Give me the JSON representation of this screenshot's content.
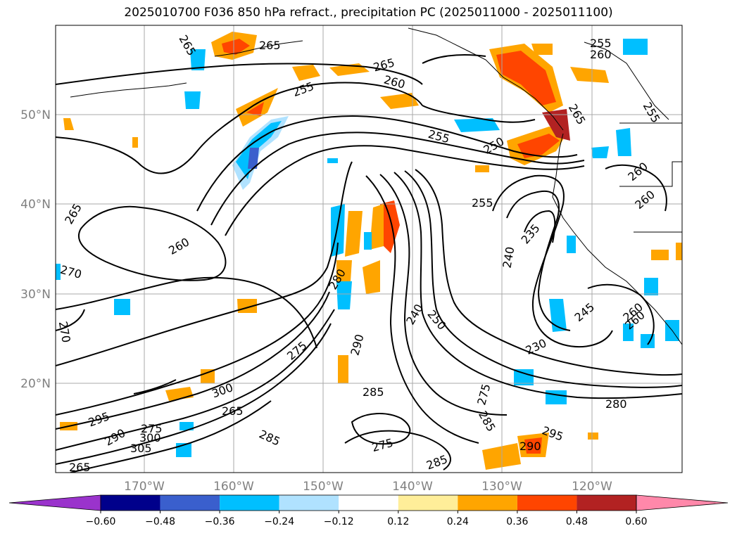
{
  "title": "2025010700 F036 850 hPa refract., precipitation PC (2025011000 - 2025011100)",
  "lat_labels": [
    "50°N",
    "40°N",
    "30°N",
    "20°N"
  ],
  "lon_labels": [
    "170°W",
    "160°W",
    "150°W",
    "140°W",
    "130°W",
    "120°W"
  ],
  "colorbar": {
    "colors": [
      "#9a33cc",
      "#00008b",
      "#3a5fcd",
      "#00bfff",
      "#b0e2ff",
      "#ffffff",
      "#ffee99",
      "#ffa500",
      "#ff4500",
      "#b22222",
      "#ff88aa"
    ],
    "tick_labels": [
      "−0.60",
      "−0.48",
      "−0.36",
      "−0.24",
      "−0.12",
      "0.12",
      "0.24",
      "0.36",
      "0.48",
      "0.60"
    ]
  },
  "contour_labels": [
    "265",
    "265",
    "265",
    "255",
    "260",
    "255",
    "250",
    "255",
    "260",
    "255",
    "260",
    "260",
    "265",
    "255",
    "235",
    "240",
    "240",
    "250",
    "245",
    "230",
    "260",
    "260",
    "270",
    "270",
    "280",
    "290",
    "285",
    "300",
    "295",
    "285",
    "275",
    "285",
    "280",
    "295",
    "290",
    "285",
    "275",
    "265",
    "305",
    "300",
    "290",
    "260",
    "265",
    "275",
    "275",
    "265"
  ],
  "chart_data": {
    "type": "heatmap",
    "title": "2025010700 F036 850 hPa refract., precipitation PC (2025011000 - 2025011100)",
    "x_ticks": [
      "170°W",
      "160°W",
      "150°W",
      "140°W",
      "130°W",
      "120°W"
    ],
    "y_ticks": [
      "50°N",
      "40°N",
      "30°N",
      "20°N"
    ],
    "xlim": [
      "~180°W",
      "~110°W"
    ],
    "ylim": [
      "~10°N",
      "~60°N"
    ],
    "grid": true,
    "colorbar_levels": [
      -0.6,
      -0.48,
      -0.36,
      -0.24,
      -0.12,
      0.12,
      0.24,
      0.36,
      0.48,
      0.6
    ],
    "colorbar_extend": "both",
    "contour_field": "850 hPa refractivity",
    "shaded_field": "precipitation PC"
  }
}
